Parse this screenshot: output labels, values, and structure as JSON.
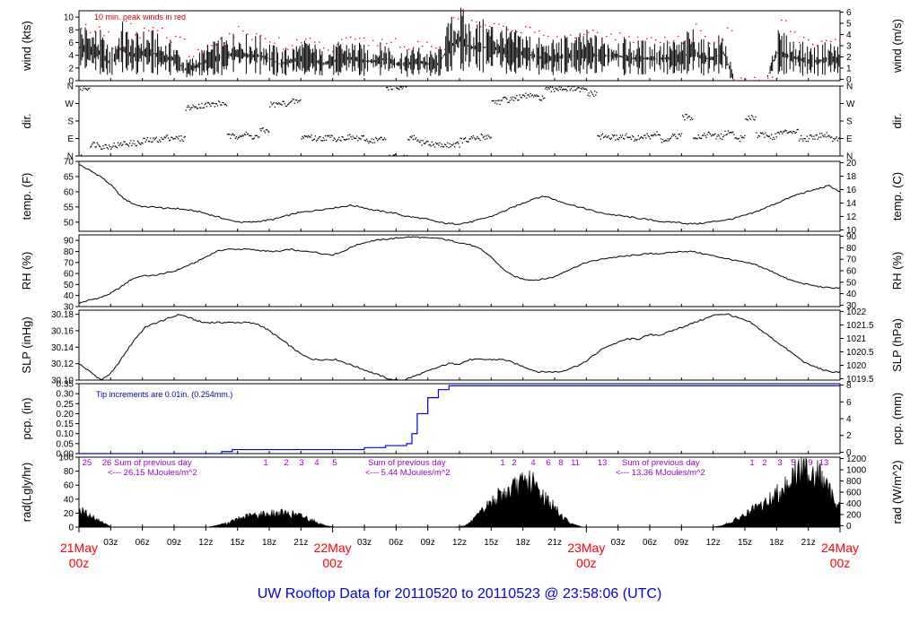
{
  "footer_title": "UW Rooftop Data for 20110520  to  20110523 @ 23:58:06  (UTC)",
  "colors": {
    "peak_wind": "#ff0000",
    "precip_line": "#0000ee",
    "date_label": "#ff0000",
    "radiation_annotation": "#9900cc",
    "footer": "#0000ee",
    "trace": "#000000"
  },
  "time_axis": {
    "hour_ticks": [
      "03z",
      "06z",
      "09z",
      "12z",
      "15z",
      "18z",
      "21z",
      "03z",
      "06z",
      "09z",
      "12z",
      "15z",
      "18z",
      "21z",
      "03z",
      "06z",
      "09z",
      "12z",
      "15z",
      "18z",
      "21z"
    ],
    "dates": [
      {
        "day": "21May",
        "hour": "00z"
      },
      {
        "day": "22May",
        "hour": "00z"
      },
      {
        "day": "23May",
        "hour": "00z"
      },
      {
        "day": "24May",
        "hour": "00z"
      }
    ]
  },
  "chart_data": [
    {
      "type": "line",
      "id": "wind",
      "ylabel_left": "wind (kts)",
      "ylabel_right": "wind (m/s)",
      "ylim": [
        0,
        11
      ],
      "ticks_left": [
        "0",
        "2",
        "4",
        "6",
        "8",
        "10"
      ],
      "ticks_right": [
        "0",
        "1",
        "2",
        "3",
        "4",
        "5",
        "6"
      ],
      "annotation": "10 min. peak winds in red",
      "series": [
        {
          "values": [
            6,
            5.5,
            5,
            3,
            6,
            4.5,
            5,
            5,
            4,
            4,
            2,
            2.5,
            3.5,
            4,
            4.5,
            5,
            4.5,
            4.5,
            4,
            3,
            3.5,
            4,
            4,
            3,
            3.5,
            4,
            4,
            3.5,
            3.5,
            4,
            3,
            3,
            3.5,
            3,
            3,
            6,
            7.5,
            6,
            6,
            6,
            5.5,
            5,
            5,
            4.5,
            4,
            4,
            4.5,
            4.5,
            5,
            4.5,
            4.5,
            4.5,
            4,
            4,
            4,
            4,
            4,
            4,
            5.5,
            4,
            4,
            5,
            0,
            0,
            0,
            0,
            5,
            4.5,
            4,
            3.5,
            3.5,
            4,
            3.5
          ]
        },
        {
          "values": [
            8.5,
            8,
            7.5,
            5,
            9,
            7,
            8,
            8,
            6.5,
            6.5,
            4,
            4.5,
            6,
            6.5,
            7,
            8,
            7,
            7,
            6.5,
            5,
            6,
            6.5,
            6.5,
            5,
            6,
            6.5,
            6.5,
            6,
            6,
            6.5,
            5,
            5,
            6,
            5,
            5,
            9.5,
            11,
            9,
            9,
            9,
            8.5,
            8,
            8,
            7.5,
            6.5,
            6.5,
            7,
            7,
            8,
            7,
            7,
            7,
            6.5,
            6.5,
            6.5,
            6.5,
            6.5,
            6.5,
            8.5,
            6.5,
            6.5,
            8,
            0.2,
            0.2,
            0.2,
            0.2,
            9.5,
            7.5,
            6.5,
            6,
            6,
            6.5,
            6
          ]
        }
      ]
    },
    {
      "type": "scatter",
      "id": "direction",
      "ylabel_left": "dir.",
      "ylabel_right": "dir.",
      "ylim": [
        0,
        360
      ],
      "ticks_left": [
        "N",
        "E",
        "S",
        "W",
        "N"
      ],
      "ticks_right": [
        "N",
        "E",
        "S",
        "W",
        "N"
      ],
      "series": [
        {
          "values": [
            350,
            60,
            50,
            55,
            65,
            65,
            80,
            85,
            95,
            90,
            250,
            260,
            265,
            270,
            100,
            110,
            100,
            130,
            265,
            270,
            280,
            100,
            90,
            95,
            90,
            95,
            90,
            80,
            85,
            355,
            350,
            90,
            70,
            60,
            55,
            60,
            80,
            90,
            100,
            280,
            290,
            300,
            310,
            300,
            340,
            350,
            345,
            340,
            320,
            100,
            95,
            100,
            90,
            100,
            110,
            80,
            100,
            200,
            100,
            110,
            100,
            120,
            90,
            200,
            110,
            100,
            120,
            130,
            90,
            100,
            110,
            90,
            100
          ]
        }
      ]
    },
    {
      "type": "line",
      "id": "temperature",
      "ylabel_left": "temp. (F)",
      "ylabel_right": "temp. (C)",
      "ylim": [
        47,
        70
      ],
      "ticks_left": [
        "50",
        "55",
        "60",
        "65",
        "70"
      ],
      "ticks_right": [
        "10",
        "12",
        "14",
        "16",
        "18",
        "20"
      ],
      "series": [
        {
          "values": [
            69,
            67,
            65,
            62,
            58,
            56,
            55,
            55,
            54.5,
            54.5,
            54,
            53.5,
            52.5,
            51.5,
            50.5,
            50,
            50,
            50.5,
            51,
            52,
            53,
            53.5,
            54,
            54.5,
            55,
            55.5,
            55,
            54,
            53.5,
            53,
            52,
            51.5,
            51,
            50,
            49.5,
            49.5,
            50,
            51,
            52,
            53.5,
            55,
            56.5,
            58,
            58.5,
            57,
            56,
            55,
            54,
            53,
            52.5,
            52,
            51.5,
            51,
            50.5,
            50,
            50,
            49.5,
            49.5,
            50,
            50.5,
            51,
            52,
            53,
            54.5,
            56,
            57.5,
            59,
            60,
            61,
            62,
            60
          ]
        }
      ]
    },
    {
      "type": "line",
      "id": "relative-humidity",
      "ylabel_left": "RH (%)",
      "ylabel_right": "RH (%)",
      "ylim": [
        30,
        95
      ],
      "ticks_left": [
        "30",
        "40",
        "50",
        "60",
        "70",
        "80",
        "90"
      ],
      "ticks_right": [
        "30",
        "40",
        "50",
        "60",
        "70",
        "80",
        "90"
      ],
      "series": [
        {
          "values": [
            33,
            36,
            38,
            42,
            48,
            55,
            58,
            58,
            60,
            62,
            66,
            70,
            75,
            80,
            82,
            82,
            82,
            81,
            80,
            80,
            82,
            80,
            80,
            78,
            77,
            80,
            85,
            88,
            90,
            91,
            92,
            93,
            93,
            92,
            92,
            90,
            88,
            86,
            82,
            75,
            65,
            58,
            55,
            54,
            55,
            57,
            62,
            66,
            70,
            72,
            74,
            75,
            76,
            77,
            78,
            78,
            79,
            80,
            80,
            78,
            76,
            74,
            72,
            70,
            68,
            64,
            60,
            55,
            52,
            50,
            48,
            47,
            47
          ]
        }
      ]
    },
    {
      "type": "line",
      "id": "sea-level-pressure",
      "ylabel_left": "SLP (inHg)",
      "ylabel_right": "SLP (hPa)",
      "ylim": [
        30.1,
        30.185
      ],
      "ticks_left": [
        "30.10",
        "30.12",
        "30.14",
        "30.16",
        "30.18"
      ],
      "ticks_right": [
        "1019.5",
        "1020",
        "1020.5",
        "1021",
        "1021.5",
        "1022"
      ],
      "series": [
        {
          "values": [
            30.12,
            30.11,
            30.1,
            30.11,
            30.13,
            30.15,
            30.165,
            30.17,
            30.175,
            30.18,
            30.175,
            30.17,
            30.17,
            30.17,
            30.17,
            30.17,
            30.168,
            30.16,
            30.15,
            30.14,
            30.13,
            30.125,
            30.125,
            30.125,
            30.12,
            30.115,
            30.11,
            30.105,
            30.1,
            30.1,
            30.105,
            30.11,
            30.115,
            30.12,
            30.12,
            30.125,
            30.125,
            30.125,
            30.125,
            30.12,
            30.115,
            30.11,
            30.11,
            30.11,
            30.115,
            30.12,
            30.13,
            30.14,
            30.145,
            30.15,
            30.15,
            30.155,
            30.155,
            30.16,
            30.165,
            30.17,
            30.175,
            30.18,
            30.18,
            30.175,
            30.17,
            30.16,
            30.15,
            30.14,
            30.13,
            30.12,
            30.115,
            30.11,
            30.11
          ]
        }
      ]
    },
    {
      "type": "line",
      "id": "precipitation",
      "ylabel_left": "pcp. (in)",
      "ylabel_right": "pcp. (mm)",
      "ylim": [
        0,
        0.35
      ],
      "ticks_left": [
        "0.00",
        "0.05",
        "0.10",
        "0.15",
        "0.20",
        "0.25",
        "0.30",
        "0.35"
      ],
      "ticks_right": [
        "0",
        "2",
        "4",
        "6",
        "8"
      ],
      "annotation": "Tip increments are 0.01in. (0.254mm.)",
      "series": [
        {
          "x": [
            0,
            13,
            13.5,
            14,
            14.5,
            15,
            26,
            27,
            28,
            29,
            30,
            31,
            31.5,
            32,
            33,
            34,
            35,
            36,
            37,
            38,
            72
          ],
          "values": [
            0,
            0,
            0.01,
            0.01,
            0.02,
            0.02,
            0.02,
            0.03,
            0.03,
            0.04,
            0.04,
            0.05,
            0.1,
            0.2,
            0.28,
            0.32,
            0.34,
            0.34,
            0.34,
            0.34,
            0.34
          ]
        }
      ]
    },
    {
      "type": "area",
      "id": "solar-radiation",
      "ylabel_left": "rad(Lgly/hr)",
      "ylabel_right": "rad (W/m^2)",
      "ylim": [
        0,
        100
      ],
      "ticks_left": [
        "0",
        "20",
        "40",
        "60",
        "80",
        "100"
      ],
      "ticks_right": [
        "0",
        "200",
        "400",
        "600",
        "800",
        "1000",
        "1200"
      ],
      "series": [
        {
          "values": [
            30,
            20,
            10,
            0,
            0,
            0,
            0,
            0,
            0,
            0,
            0,
            0,
            0,
            3,
            8,
            15,
            20,
            22,
            23,
            24,
            22,
            18,
            10,
            2,
            0,
            0,
            0,
            0,
            0,
            0,
            0,
            0,
            0,
            0,
            0,
            0,
            2,
            15,
            35,
            50,
            60,
            70,
            80,
            60,
            40,
            20,
            5,
            0,
            0,
            0,
            0,
            0,
            0,
            0,
            0,
            0,
            0,
            0,
            0,
            0,
            2,
            10,
            20,
            30,
            40,
            55,
            75,
            95,
            100,
            90,
            60,
            35
          ]
        }
      ],
      "annotations": [
        {
          "text": "Sum of previous day",
          "value": "<--- 26.15 MJoules/m^2",
          "marks": [
            "25",
            "26",
            "1",
            "2",
            "3",
            "4",
            "5"
          ]
        },
        {
          "text": "Sum of previous day",
          "value": "<--- 5.44 MJoules/m^2",
          "marks": [
            "1",
            "2",
            "4",
            "6",
            "8",
            "11",
            "13"
          ]
        },
        {
          "text": "Sum of previous day",
          "value": "<--- 13.36 MJoules/m^2",
          "marks": [
            "1",
            "2",
            "3",
            "5",
            "9",
            "13"
          ]
        }
      ]
    }
  ]
}
